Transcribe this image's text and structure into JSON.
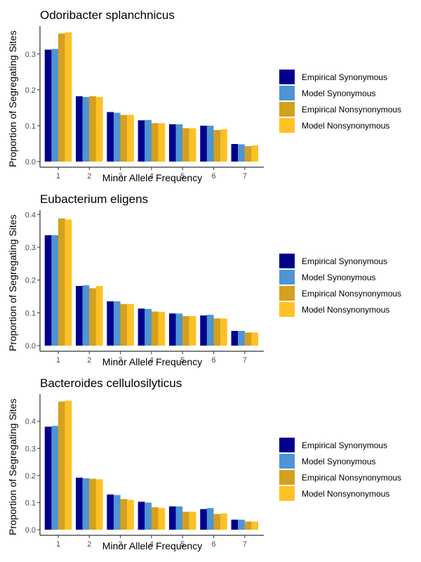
{
  "chart_data": [
    {
      "type": "bar",
      "title": "Odoribacter splanchnicus",
      "xlabel": "Minor Allele Frequency",
      "ylabel": "Proportion of Segregating Sites",
      "categories": [
        "1",
        "2",
        "3",
        "4",
        "5",
        "6",
        "7"
      ],
      "ylim": [
        0,
        0.37
      ],
      "yticks": [
        "0.0",
        "0.1",
        "0.2",
        "0.3"
      ],
      "grid": false,
      "legend_position": "right",
      "series": [
        {
          "name": "Empirical Synonymous",
          "color": "#00008B",
          "values": [
            0.312,
            0.182,
            0.138,
            0.115,
            0.104,
            0.1,
            0.049
          ]
        },
        {
          "name": "Model Synonymous",
          "color": "#4F94D4",
          "values": [
            0.314,
            0.18,
            0.136,
            0.116,
            0.104,
            0.1,
            0.048
          ]
        },
        {
          "name": "Empirical Nonsynonymous",
          "color": "#D4A020",
          "values": [
            0.357,
            0.182,
            0.13,
            0.107,
            0.093,
            0.088,
            0.043
          ]
        },
        {
          "name": "Model Nonsynonymous",
          "color": "#FFC125",
          "values": [
            0.36,
            0.18,
            0.13,
            0.107,
            0.093,
            0.09,
            0.045
          ]
        }
      ]
    },
    {
      "type": "bar",
      "title": "Eubacterium eligens",
      "xlabel": "Minor Allele Frequency",
      "ylabel": "Proportion of Segregating Sites",
      "categories": [
        "1",
        "2",
        "3",
        "4",
        "5",
        "6",
        "7"
      ],
      "ylim": [
        0,
        0.405
      ],
      "yticks": [
        "0.0",
        "0.1",
        "0.2",
        "0.3",
        "0.4"
      ],
      "grid": false,
      "legend_position": "right",
      "series": [
        {
          "name": "Empirical Synonymous",
          "color": "#00008B",
          "values": [
            0.337,
            0.182,
            0.135,
            0.113,
            0.098,
            0.092,
            0.045
          ]
        },
        {
          "name": "Model Synonymous",
          "color": "#4F94D4",
          "values": [
            0.337,
            0.184,
            0.135,
            0.112,
            0.098,
            0.094,
            0.045
          ]
        },
        {
          "name": "Empirical Nonsynonymous",
          "color": "#D4A020",
          "values": [
            0.388,
            0.175,
            0.127,
            0.104,
            0.09,
            0.083,
            0.04
          ]
        },
        {
          "name": "Model Nonsynonymous",
          "color": "#FFC125",
          "values": [
            0.385,
            0.182,
            0.127,
            0.103,
            0.09,
            0.083,
            0.04
          ]
        }
      ]
    },
    {
      "type": "bar",
      "title": "Bacteroides cellulosilyticus",
      "xlabel": "Minor Allele Frequency",
      "ylabel": "Proportion of Segregating Sites",
      "categories": [
        "1",
        "2",
        "3",
        "4",
        "5",
        "6",
        "7"
      ],
      "ylim": [
        0,
        0.49
      ],
      "yticks": [
        "0.0",
        "0.1",
        "0.2",
        "0.3",
        "0.4"
      ],
      "grid": false,
      "legend_position": "right",
      "series": [
        {
          "name": "Empirical Synonymous",
          "color": "#00008B",
          "values": [
            0.38,
            0.192,
            0.13,
            0.103,
            0.086,
            0.076,
            0.037
          ]
        },
        {
          "name": "Model Synonymous",
          "color": "#4F94D4",
          "values": [
            0.383,
            0.19,
            0.128,
            0.1,
            0.086,
            0.08,
            0.037
          ]
        },
        {
          "name": "Empirical Nonsynonymous",
          "color": "#D4A020",
          "values": [
            0.473,
            0.188,
            0.113,
            0.083,
            0.066,
            0.058,
            0.03
          ]
        },
        {
          "name": "Model Nonsynonymous",
          "color": "#FFC125",
          "values": [
            0.476,
            0.186,
            0.11,
            0.08,
            0.066,
            0.06,
            0.03
          ]
        }
      ]
    }
  ]
}
